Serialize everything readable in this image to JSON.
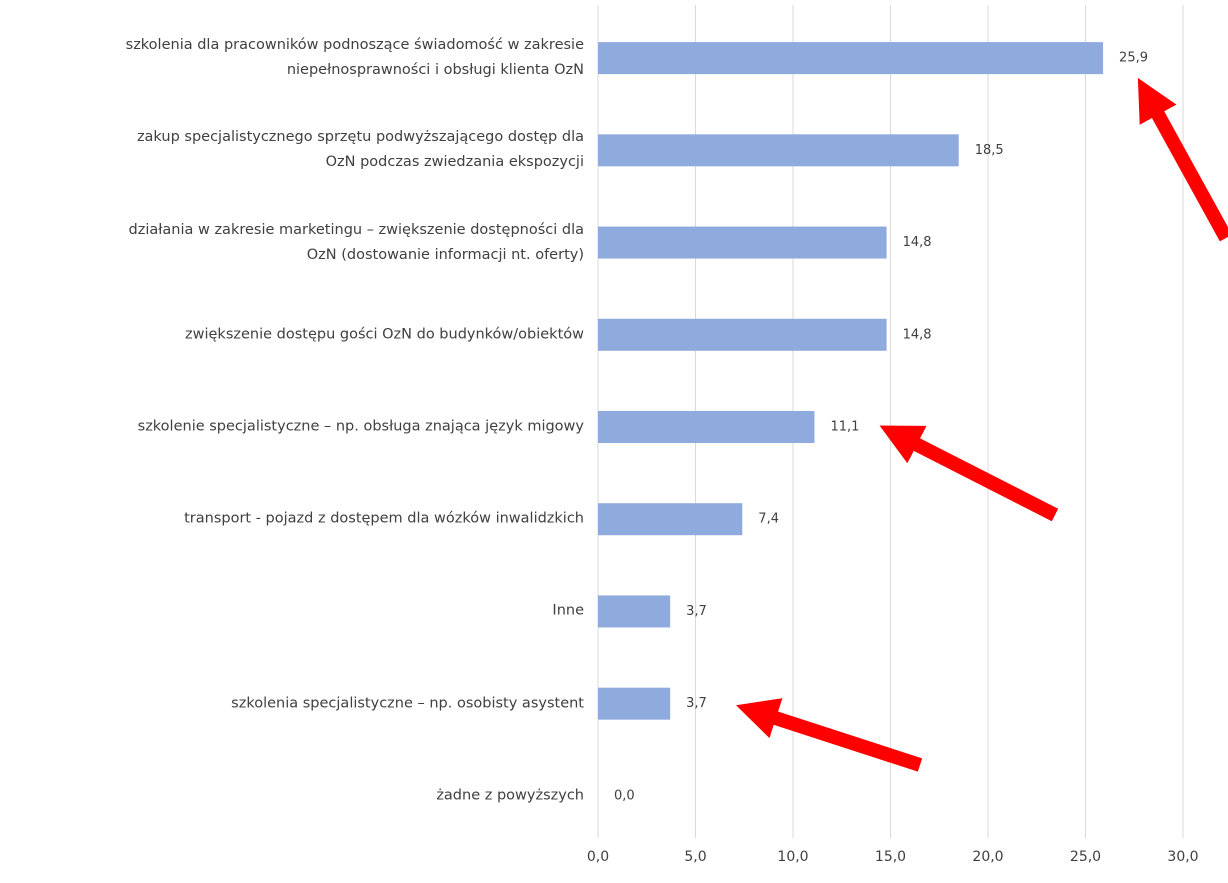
{
  "chart_data": {
    "type": "bar",
    "orientation": "horizontal",
    "categories": [
      "szkolenia dla pracowników podnoszące świadomość w zakresie\nniepełnosprawności i obsługi klienta OzN",
      "zakup specjalistycznego sprzętu podwyższającego dostęp dla\nOzN podczas zwiedzania ekspozycji",
      "działania w zakresie marketingu – zwiększenie dostępności dla\nOzN (dostowanie informacji nt. oferty)",
      "zwiększenie dostępu gości OzN do budynków/obiektów",
      "szkolenie specjalistyczne – np. obsługa znająca język migowy",
      "transport - pojazd z dostępem dla wózków inwalidzkich",
      "Inne",
      "szkolenia specjalistyczne – np. osobisty asystent",
      "żadne z powyższych"
    ],
    "values": [
      25.9,
      18.5,
      14.8,
      14.8,
      11.1,
      7.4,
      3.7,
      3.7,
      0.0
    ],
    "value_labels": [
      "25,9",
      "18,5",
      "14,8",
      "14,8",
      "11,1",
      "7,4",
      "3,7",
      "3,7",
      "0,0"
    ],
    "color": "#8faadc",
    "xlim": [
      0,
      30
    ],
    "xticks": [
      {
        "value": 0,
        "label": "0,0"
      },
      {
        "value": 5,
        "label": "5,0"
      },
      {
        "value": 10,
        "label": "10,0"
      },
      {
        "value": 15,
        "label": "15,0"
      },
      {
        "value": 20,
        "label": "20,0"
      },
      {
        "value": 25,
        "label": "25,0"
      },
      {
        "value": 30,
        "label": "30,0"
      }
    ],
    "grid": true
  }
}
